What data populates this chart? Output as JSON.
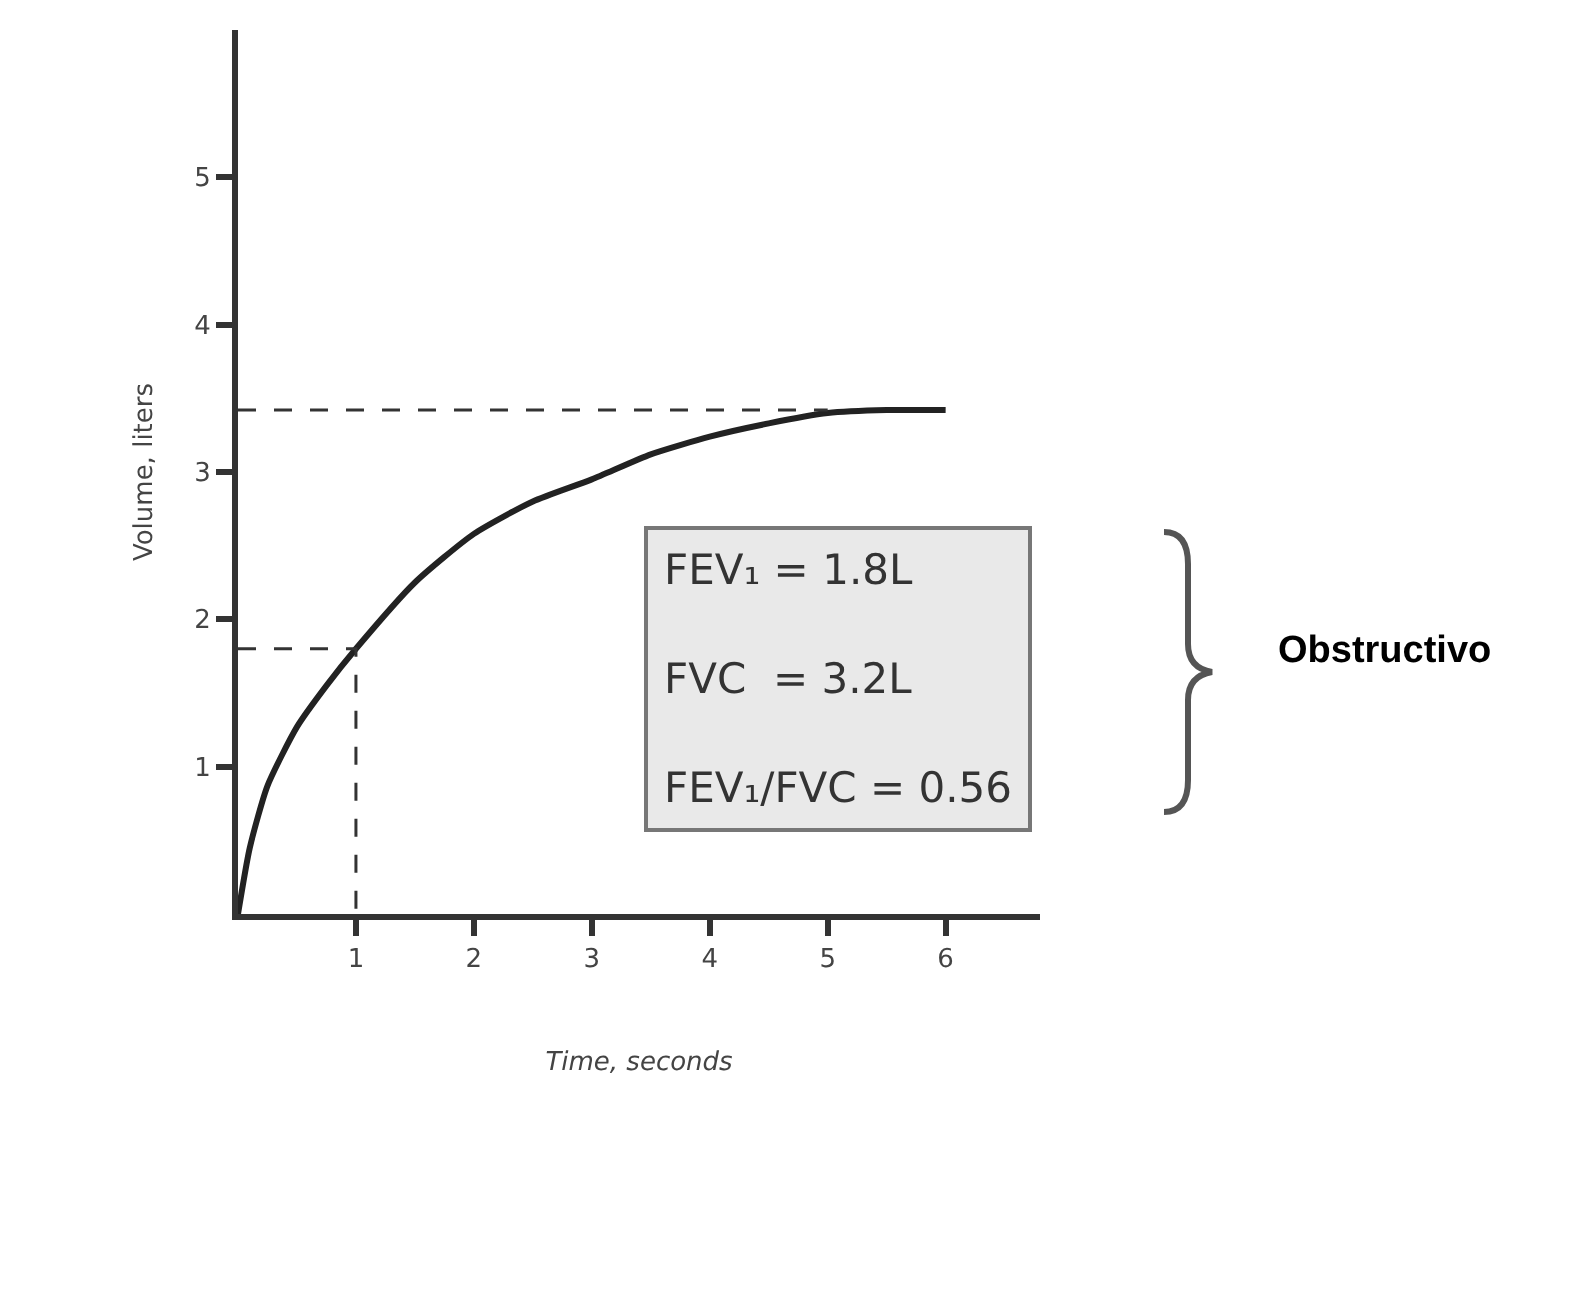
{
  "chart_data": {
    "type": "line",
    "xlabel": "Time, seconds",
    "ylabel": "Volume, liters",
    "series": [
      {
        "color": "#222222",
        "x": [
          0,
          0.1,
          0.25,
          0.5,
          0.75,
          1,
          1.5,
          2,
          2.5,
          3,
          3.5,
          4,
          4.5,
          5,
          5.5,
          6
        ],
        "values": [
          0,
          0.45,
          0.87,
          1.27,
          1.55,
          1.8,
          2.25,
          2.58,
          2.8,
          2.95,
          3.12,
          3.24,
          3.33,
          3.4,
          3.42,
          3.42
        ]
      },
      {
        "color": "#333333",
        "line_style": "dashed",
        "x": [
          0,
          1,
          1
        ],
        "values": [
          1.8,
          1.8,
          0
        ]
      },
      {
        "color": "#333333",
        "line_style": "dashed",
        "x": [
          0,
          5
        ],
        "values": [
          3.42,
          3.42
        ]
      }
    ],
    "xlim": [
      0,
      6.8
    ],
    "ylim": [
      0,
      6
    ],
    "xticks": [
      1,
      2,
      3,
      4,
      5,
      6
    ],
    "yticks": [
      1,
      2,
      3,
      4,
      5
    ],
    "grid": false,
    "marker": "none",
    "line_style": "solid",
    "annotations": [
      "FEV₁ = 1.8L",
      "FVC  = 3.2L",
      "FEV₁/FVC = 0.56",
      "Obstructivo"
    ]
  }
}
